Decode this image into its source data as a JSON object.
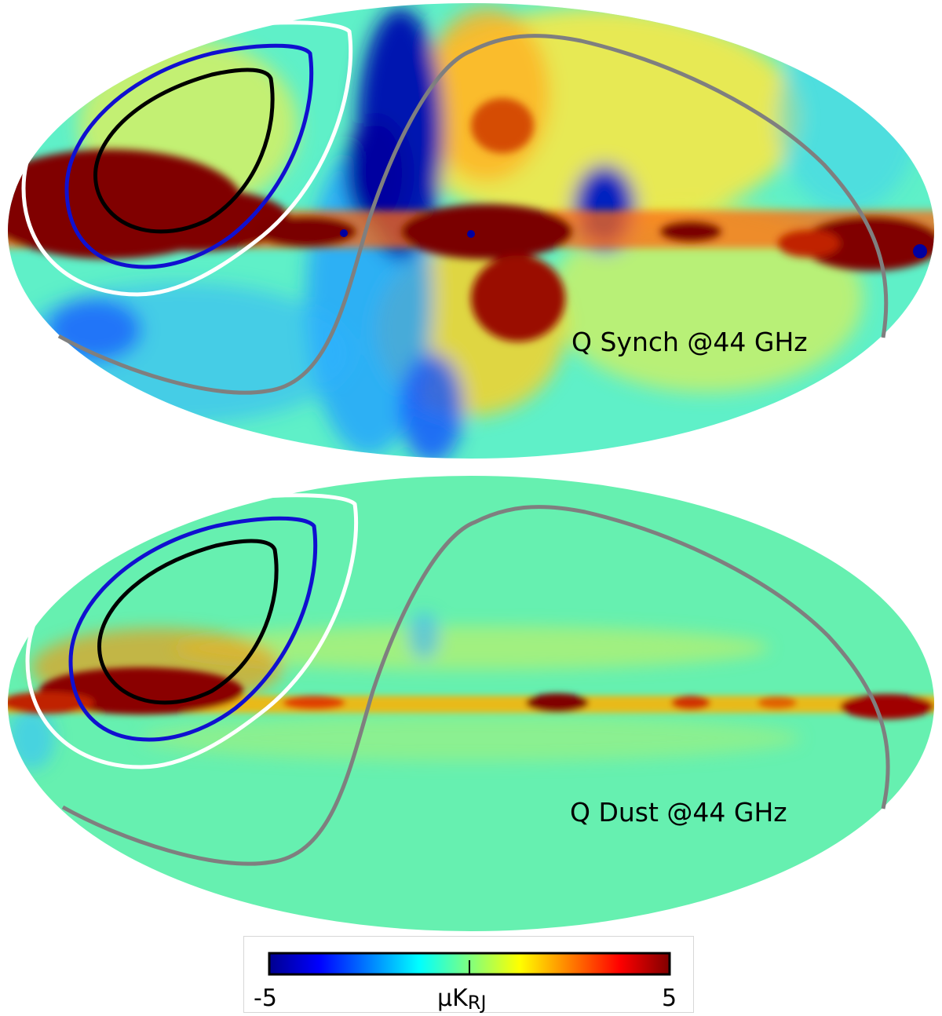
{
  "maps": [
    {
      "id": "synch",
      "label": "Q Synch @44 GHz",
      "colors": {
        "background": "#5ff0c8",
        "high": "#7a0000",
        "low": "#00008c"
      }
    },
    {
      "id": "dust",
      "label": "Q Dust @44 GHz",
      "colors": {
        "background": "#66f0b0",
        "high": "#7a0000",
        "low": "#00008c"
      }
    }
  ],
  "contours": {
    "colors": {
      "outer": "#ffffff",
      "middle": "#1010d0",
      "inner": "#000000",
      "boundary": "#7f7f7f"
    }
  },
  "colorbar": {
    "min": "-5",
    "max": "5",
    "unit_main": "μK",
    "unit_sub": "RJ",
    "colormap": "jet",
    "stops": [
      "#00008f",
      "#0000ff",
      "#00ffff",
      "#7fff7f",
      "#ffff00",
      "#ff0000",
      "#800000"
    ]
  }
}
